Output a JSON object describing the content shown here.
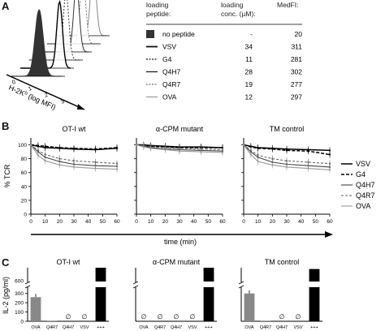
{
  "panel_labels": {
    "a": "A",
    "b": "B",
    "c": "C"
  },
  "panel_a": {
    "axis_label": "H-2K",
    "axis_label_sup": "b",
    "axis_label_tail": " (log MFI)",
    "ticks": [
      "0",
      "1",
      "2",
      "3",
      "4"
    ],
    "table": {
      "headers": [
        "loading\npeptide:",
        "loading\nconc. (µM):",
        "MedFI:"
      ],
      "rows": [
        {
          "peptide": "no peptide",
          "conc": "",
          "medfi": "20",
          "style": "filled"
        },
        {
          "peptide": "VSV",
          "conc": "34",
          "medfi": "311",
          "style": "solid-thick"
        },
        {
          "peptide": "G4",
          "conc": "11",
          "medfi": "281",
          "style": "dotted"
        },
        {
          "peptide": "Q4H7",
          "conc": "28",
          "medfi": "302",
          "style": "solid"
        },
        {
          "peptide": "Q4R7",
          "conc": "19",
          "medfi": "277",
          "style": "dotted-thin"
        },
        {
          "peptide": "OVA",
          "conc": "12",
          "medfi": "297",
          "style": "solid-grey"
        }
      ]
    }
  },
  "chart_data": [
    {
      "type": "line",
      "panel": "B",
      "title": "OT-I wt",
      "ylabel": "% TCR",
      "xlabel": "time (min)",
      "ylim": [
        0,
        110
      ],
      "yticks": [
        0,
        20,
        40,
        60,
        80,
        100
      ],
      "xticks": [
        0,
        10,
        20,
        30,
        40,
        50,
        60
      ],
      "x": [
        0,
        5,
        10,
        20,
        30,
        45,
        60
      ],
      "series": [
        {
          "name": "VSV",
          "values": [
            100,
            98,
            96,
            95,
            94,
            93,
            95
          ]
        },
        {
          "name": "G4",
          "values": [
            100,
            99,
            98,
            96,
            95,
            94,
            96
          ]
        },
        {
          "name": "Q4H7",
          "values": [
            100,
            90,
            82,
            76,
            72,
            70,
            69
          ]
        },
        {
          "name": "Q4R7",
          "values": [
            100,
            92,
            86,
            80,
            77,
            75,
            73
          ]
        },
        {
          "name": "OVA",
          "values": [
            100,
            85,
            77,
            71,
            68,
            66,
            65
          ]
        }
      ]
    },
    {
      "type": "line",
      "panel": "B",
      "title": "α-CPM mutant",
      "ylim": [
        0,
        110
      ],
      "xticks": [
        0,
        10,
        20,
        30,
        40,
        50,
        60
      ],
      "x": [
        0,
        5,
        10,
        20,
        30,
        45,
        60
      ],
      "series": [
        {
          "name": "VSV",
          "values": [
            100,
            100,
            99,
            98,
            97,
            97,
            96
          ]
        },
        {
          "name": "G4",
          "values": [
            100,
            99,
            98,
            97,
            96,
            96,
            96
          ]
        },
        {
          "name": "Q4H7",
          "values": [
            100,
            98,
            96,
            94,
            93,
            92,
            91
          ]
        },
        {
          "name": "Q4R7",
          "values": [
            100,
            99,
            97,
            96,
            95,
            94,
            93
          ]
        },
        {
          "name": "OVA",
          "values": [
            100,
            97,
            95,
            93,
            91,
            90,
            89
          ]
        }
      ]
    },
    {
      "type": "line",
      "panel": "B",
      "title": "TM control",
      "ylim": [
        0,
        110
      ],
      "xticks": [
        0,
        10,
        20,
        30,
        40,
        50,
        60
      ],
      "x": [
        0,
        5,
        10,
        20,
        30,
        45,
        60
      ],
      "series": [
        {
          "name": "VSV",
          "values": [
            100,
            98,
            96,
            95,
            94,
            93,
            92
          ]
        },
        {
          "name": "G4",
          "values": [
            100,
            97,
            95,
            94,
            92,
            91,
            86
          ]
        },
        {
          "name": "Q4H7",
          "values": [
            100,
            90,
            82,
            75,
            72,
            70,
            68
          ]
        },
        {
          "name": "Q4R7",
          "values": [
            100,
            92,
            85,
            80,
            77,
            75,
            73
          ]
        },
        {
          "name": "OVA",
          "values": [
            100,
            86,
            76,
            71,
            68,
            66,
            64
          ]
        }
      ]
    },
    {
      "type": "bar",
      "panel": "C",
      "title": "OT-I wt",
      "ylabel": "IL-2 (pg/ml)",
      "categories": [
        "OVA",
        "Q4R7",
        "Q4H7",
        "VSV",
        "+++"
      ],
      "values": [
        260,
        5,
        0,
        0,
        800
      ],
      "nd_label": "∅",
      "yticks_lower": [
        0,
        100,
        200,
        300
      ],
      "ytick_upper": 600,
      "break_marker": "//"
    },
    {
      "type": "bar",
      "panel": "C",
      "title": "α-CPM mutant",
      "categories": [
        "OVA",
        "Q4R7",
        "Q4H7",
        "VSV",
        "+++"
      ],
      "values": [
        0,
        0,
        0,
        0,
        800
      ],
      "nd_label": "∅"
    },
    {
      "type": "bar",
      "panel": "C",
      "title": "TM control",
      "categories": [
        "OVA",
        "Q4R7",
        "Q4H7",
        "VSV",
        "+++"
      ],
      "values": [
        300,
        5,
        0,
        0,
        780
      ],
      "nd_label": "∅"
    }
  ]
}
